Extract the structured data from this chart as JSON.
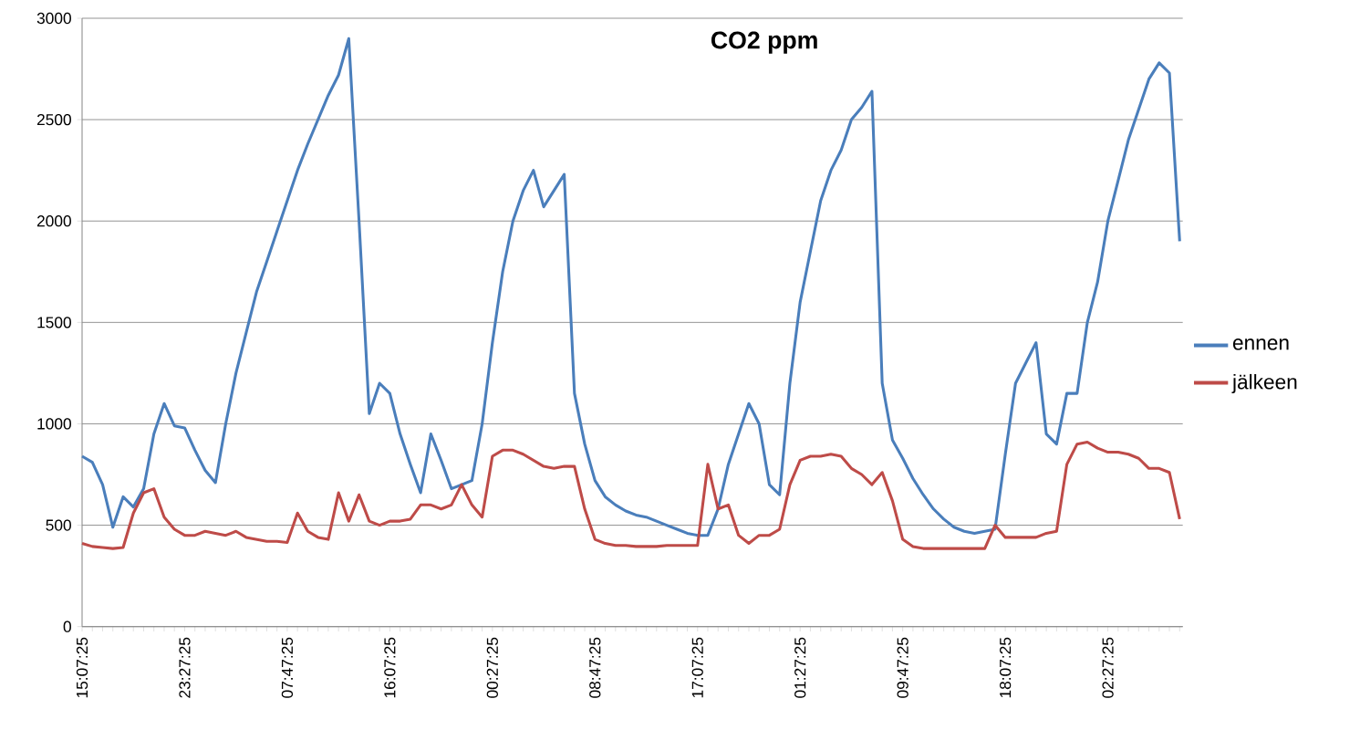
{
  "chart_data": {
    "type": "line",
    "title": "CO2 ppm",
    "categories": [
      "15:07:25",
      null,
      null,
      null,
      null,
      null,
      null,
      null,
      null,
      null,
      "23:27:25",
      null,
      null,
      null,
      null,
      null,
      null,
      null,
      null,
      null,
      "07:47:25",
      null,
      null,
      null,
      null,
      null,
      null,
      null,
      null,
      null,
      "16:07:25",
      null,
      null,
      null,
      null,
      null,
      null,
      null,
      null,
      null,
      "00:27:25",
      null,
      null,
      null,
      null,
      null,
      null,
      null,
      null,
      null,
      "08:47:25",
      null,
      null,
      null,
      null,
      null,
      null,
      null,
      null,
      null,
      "17:07:25",
      null,
      null,
      null,
      null,
      null,
      null,
      null,
      null,
      null,
      "01:27:25",
      null,
      null,
      null,
      null,
      null,
      null,
      null,
      null,
      null,
      "09:47:25",
      null,
      null,
      null,
      null,
      null,
      null,
      null,
      null,
      null,
      "18:07:25",
      null,
      null,
      null,
      null,
      null,
      null,
      null,
      null,
      null,
      "02:27:25",
      null,
      null,
      null,
      null,
      null,
      null,
      null
    ],
    "series": [
      {
        "name": "ennen",
        "color": "#4a7ebb",
        "values": [
          840,
          810,
          700,
          490,
          640,
          590,
          680,
          950,
          1100,
          990,
          980,
          870,
          770,
          710,
          1000,
          1250,
          1450,
          1650,
          1800,
          1950,
          2100,
          2250,
          2380,
          2500,
          2620,
          2720,
          2900,
          2000,
          1050,
          1200,
          1150,
          950,
          800,
          660,
          950,
          820,
          680,
          700,
          720,
          1000,
          1400,
          1750,
          2000,
          2150,
          2250,
          2070,
          2150,
          2230,
          1150,
          900,
          720,
          640,
          600,
          570,
          550,
          540,
          520,
          500,
          480,
          460,
          450,
          450,
          580,
          800,
          950,
          1100,
          1000,
          700,
          650,
          1200,
          1600,
          1850,
          2100,
          2250,
          2350,
          2500,
          2560,
          2640,
          1200,
          920,
          830,
          730,
          650,
          580,
          530,
          490,
          470,
          460,
          470,
          480,
          850,
          1200,
          1300,
          1400,
          950,
          900,
          1150,
          1150,
          1500,
          1700,
          2000,
          2200,
          2400,
          2550,
          2700,
          2780,
          2730,
          1900
        ]
      },
      {
        "name": "jälkeen",
        "color": "#be4b48",
        "values": [
          410,
          395,
          390,
          385,
          390,
          560,
          660,
          680,
          540,
          480,
          450,
          450,
          470,
          460,
          450,
          470,
          440,
          430,
          420,
          420,
          415,
          560,
          470,
          440,
          430,
          660,
          520,
          650,
          520,
          500,
          520,
          520,
          530,
          600,
          600,
          580,
          600,
          700,
          600,
          540,
          840,
          870,
          870,
          850,
          820,
          790,
          780,
          790,
          790,
          580,
          430,
          410,
          400,
          400,
          395,
          395,
          395,
          400,
          400,
          400,
          400,
          800,
          580,
          600,
          450,
          410,
          450,
          450,
          480,
          700,
          820,
          840,
          840,
          850,
          840,
          780,
          750,
          700,
          760,
          620,
          430,
          395,
          385,
          385,
          385,
          385,
          385,
          385,
          385,
          500,
          440,
          440,
          440,
          440,
          460,
          470,
          800,
          900,
          910,
          880,
          860,
          860,
          850,
          830,
          780,
          780,
          760,
          530
        ]
      }
    ],
    "ylim": [
      0,
      3000
    ],
    "yticks": [
      0,
      500,
      1000,
      1500,
      2000,
      2500,
      3000
    ],
    "grid": "y",
    "legend": "right"
  }
}
